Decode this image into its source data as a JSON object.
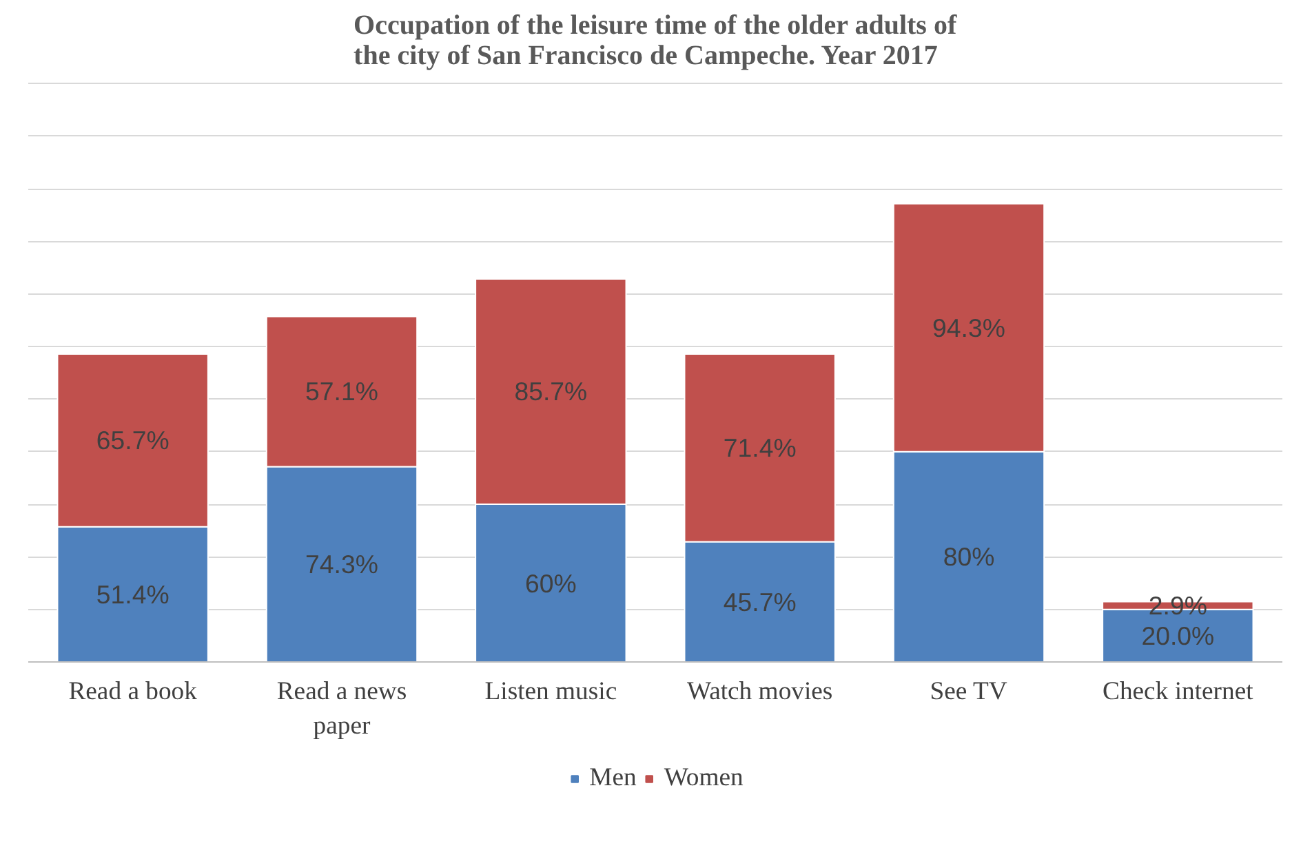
{
  "chart_data": {
    "type": "bar",
    "stacked": true,
    "title": "Occupation of the leisure time of the older adults of the city of San Francisco de Campeche. Year 2017",
    "categories": [
      "Read a book",
      "Read a news paper",
      "Listen music",
      "Watch movies",
      "See TV",
      "Check internet"
    ],
    "series": [
      {
        "name": "Men",
        "color": "#4f81bd",
        "values": [
          51.4,
          74.3,
          60,
          45.7,
          80,
          20.0
        ],
        "value_labels": [
          "51.4%",
          "74.3%",
          "60%",
          "45.7%",
          "80%",
          "20.0%"
        ]
      },
      {
        "name": "Women",
        "color": "#c0504d",
        "values": [
          65.7,
          57.1,
          85.7,
          71.4,
          94.3,
          2.9
        ],
        "value_labels": [
          "65.7%",
          "57.1%",
          "85.7%",
          "71.4%",
          "94.3%",
          "2.9%"
        ]
      }
    ],
    "yticks": [
      {
        "value": 0,
        "label": null
      },
      {
        "value": 20,
        "label": null
      },
      {
        "value": 40,
        "label": null
      },
      {
        "value": 60,
        "label": null
      },
      {
        "value": 80,
        "label": null
      },
      {
        "value": 100,
        "label": null
      },
      {
        "value": 120,
        "label": null
      },
      {
        "value": 140,
        "label": null
      },
      {
        "value": 160,
        "label": null
      },
      {
        "value": 180,
        "label": null
      },
      {
        "value": 200,
        "label": null
      },
      {
        "value": 220,
        "label": null
      }
    ],
    "grid": "y",
    "legend": "bottom",
    "tick_labels": "x"
  }
}
